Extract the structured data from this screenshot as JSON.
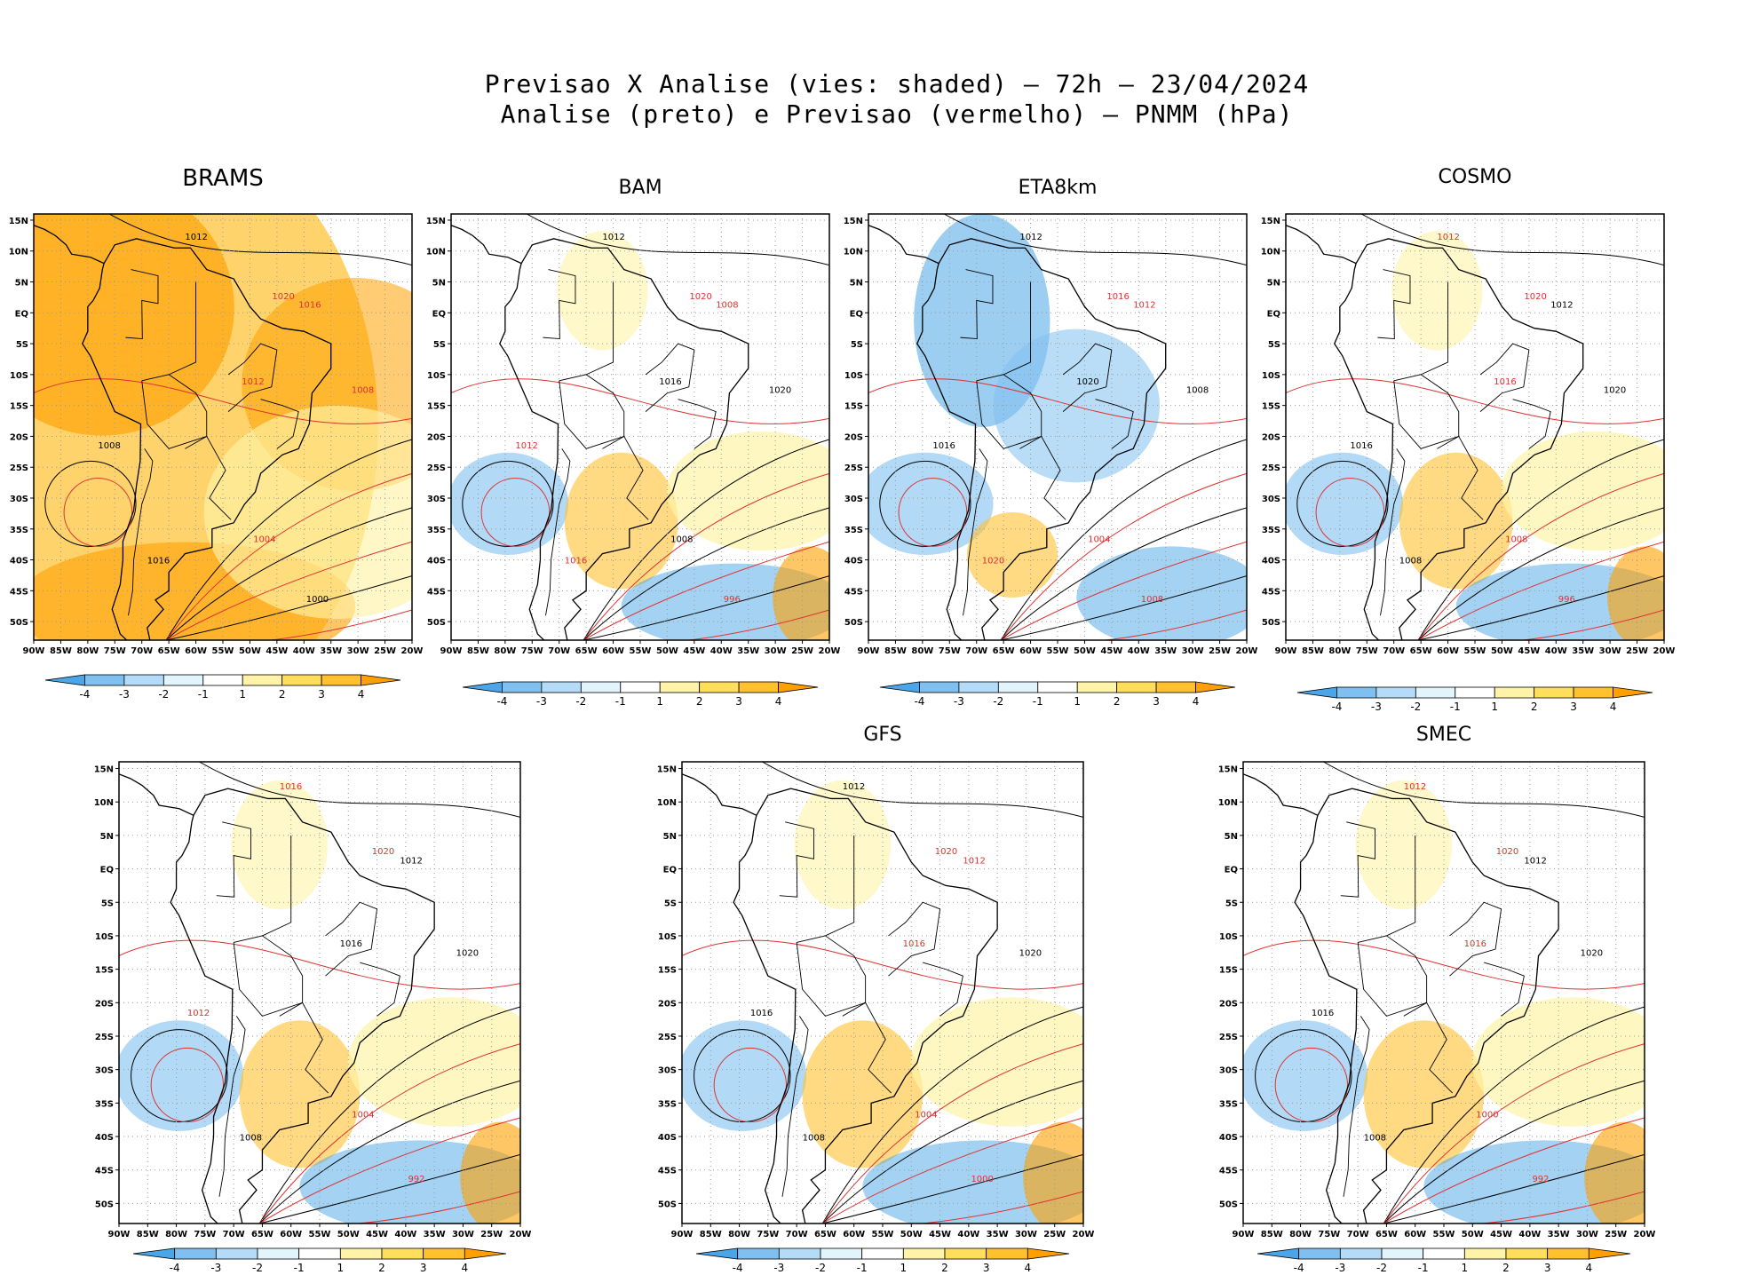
{
  "figure": {
    "title_line1": "Previsao X Analise (vies: shaded) – 72h – 23/04/2024",
    "title_line2": "Analise (preto) e Previsao (vermelho) – PNMM (hPa)"
  },
  "chart_data": {
    "type": "map-contour",
    "shared": {
      "lon_labels": [
        "90W",
        "85W",
        "80W",
        "75W",
        "70W",
        "65W",
        "60W",
        "55W",
        "50W",
        "45W",
        "40W",
        "35W",
        "30W",
        "25W",
        "20W"
      ],
      "lat_labels": [
        "15N",
        "10N",
        "5N",
        "EQ",
        "5S",
        "10S",
        "15S",
        "20S",
        "25S",
        "30S",
        "35S",
        "40S",
        "45S",
        "50S"
      ],
      "colorbar_labels": [
        "-4",
        "-3",
        "-2",
        "-1",
        "1",
        "2",
        "3",
        "4"
      ],
      "colorbar_colors": [
        "#4aa6e8",
        "#7fc0f0",
        "#b4dcf8",
        "#e2f4fc",
        "#ffffff",
        "#fff3a8",
        "#ffde5c",
        "#ffc12e",
        "#ffa000"
      ],
      "analysis_color": "#000000",
      "forecast_color": "#e03030"
    },
    "panels": [
      {
        "title": "BRAMS",
        "bias": "warm",
        "contours": [
          {
            "v": "1012",
            "c": "black"
          },
          {
            "v": "1016",
            "c": "red"
          },
          {
            "v": "1008",
            "c": "black"
          },
          {
            "v": "1012",
            "c": "red"
          },
          {
            "v": "1008",
            "c": "red"
          },
          {
            "v": "1020",
            "c": "red"
          },
          {
            "v": "1016",
            "c": "black"
          },
          {
            "v": "1004",
            "c": "red"
          },
          {
            "v": "1000",
            "c": "black"
          }
        ]
      },
      {
        "title": "BAM",
        "bias": "mixed",
        "contours": [
          {
            "v": "1012",
            "c": "black"
          },
          {
            "v": "1008",
            "c": "red"
          },
          {
            "v": "1012",
            "c": "red"
          },
          {
            "v": "1016",
            "c": "black"
          },
          {
            "v": "1020",
            "c": "black"
          },
          {
            "v": "1020",
            "c": "red"
          },
          {
            "v": "1016",
            "c": "red"
          },
          {
            "v": "1008",
            "c": "black"
          },
          {
            "v": "996",
            "c": "red"
          }
        ]
      },
      {
        "title": "ETA8km",
        "bias": "cool",
        "contours": [
          {
            "v": "1012",
            "c": "black"
          },
          {
            "v": "1012",
            "c": "red"
          },
          {
            "v": "1016",
            "c": "black"
          },
          {
            "v": "1020",
            "c": "black"
          },
          {
            "v": "1008",
            "c": "black"
          },
          {
            "v": "1016",
            "c": "red"
          },
          {
            "v": "1020",
            "c": "red"
          },
          {
            "v": "1004",
            "c": "red"
          },
          {
            "v": "1008",
            "c": "red"
          }
        ]
      },
      {
        "title": "COSMO",
        "bias": "mixed",
        "contours": [
          {
            "v": "1012",
            "c": "red"
          },
          {
            "v": "1012",
            "c": "black"
          },
          {
            "v": "1016",
            "c": "black"
          },
          {
            "v": "1016",
            "c": "red"
          },
          {
            "v": "1020",
            "c": "black"
          },
          {
            "v": "1020",
            "c": "red"
          },
          {
            "v": "1008",
            "c": "black"
          },
          {
            "v": "1008",
            "c": "red"
          },
          {
            "v": "996",
            "c": "red"
          }
        ]
      },
      {
        "title": "",
        "bias": "mixed",
        "contours": [
          {
            "v": "1016",
            "c": "red"
          },
          {
            "v": "1012",
            "c": "black"
          },
          {
            "v": "1012",
            "c": "red"
          },
          {
            "v": "1016",
            "c": "black"
          },
          {
            "v": "1020",
            "c": "black"
          },
          {
            "v": "1020",
            "c": "red"
          },
          {
            "v": "1008",
            "c": "black"
          },
          {
            "v": "1004",
            "c": "red"
          },
          {
            "v": "992",
            "c": "red"
          }
        ]
      },
      {
        "title": "GFS",
        "bias": "mixed",
        "contours": [
          {
            "v": "1012",
            "c": "black"
          },
          {
            "v": "1012",
            "c": "red"
          },
          {
            "v": "1016",
            "c": "black"
          },
          {
            "v": "1016",
            "c": "red"
          },
          {
            "v": "1020",
            "c": "black"
          },
          {
            "v": "1020",
            "c": "red"
          },
          {
            "v": "1008",
            "c": "black"
          },
          {
            "v": "1004",
            "c": "red"
          },
          {
            "v": "1000",
            "c": "red"
          }
        ]
      },
      {
        "title": "SMEC",
        "bias": "mixed",
        "contours": [
          {
            "v": "1012",
            "c": "red"
          },
          {
            "v": "1012",
            "c": "black"
          },
          {
            "v": "1016",
            "c": "black"
          },
          {
            "v": "1016",
            "c": "red"
          },
          {
            "v": "1020",
            "c": "black"
          },
          {
            "v": "1020",
            "c": "red"
          },
          {
            "v": "1008",
            "c": "black"
          },
          {
            "v": "1000",
            "c": "red"
          },
          {
            "v": "992",
            "c": "red"
          }
        ]
      }
    ]
  }
}
